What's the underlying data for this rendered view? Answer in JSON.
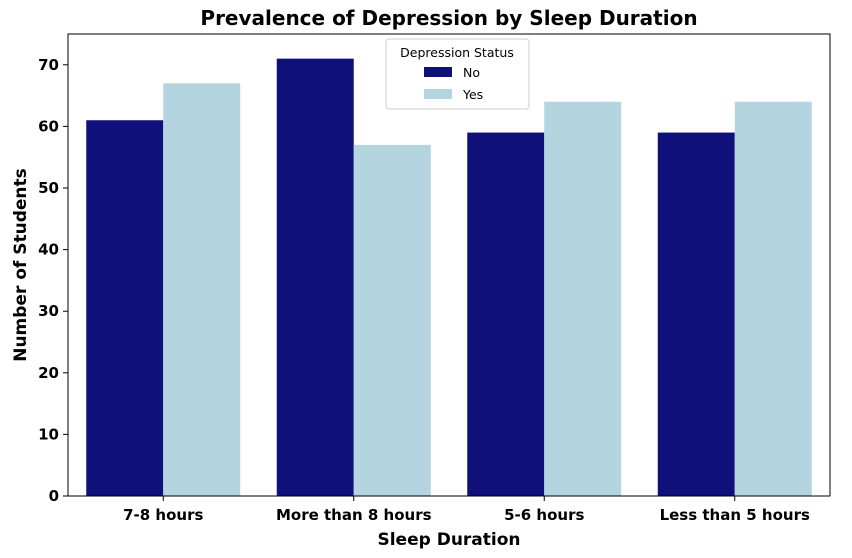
{
  "chart_data": {
    "type": "bar",
    "title": "Prevalence of Depression by Sleep Duration",
    "xlabel": "Sleep Duration",
    "ylabel": "Number of Students",
    "categories": [
      "7-8 hours",
      "More than 8 hours",
      "5-6 hours",
      "Less than 5 hours"
    ],
    "series": [
      {
        "name": "No",
        "color": "#10107a",
        "values": [
          61,
          71,
          59,
          59
        ]
      },
      {
        "name": "Yes",
        "color": "#b4d5e0",
        "values": [
          67,
          57,
          64,
          64
        ]
      }
    ],
    "ylim": [
      0,
      75
    ],
    "yticks": [
      0,
      10,
      20,
      30,
      40,
      50,
      60,
      70
    ],
    "legend": {
      "title": "Depression Status",
      "placement": "top-center"
    },
    "grid": false
  }
}
